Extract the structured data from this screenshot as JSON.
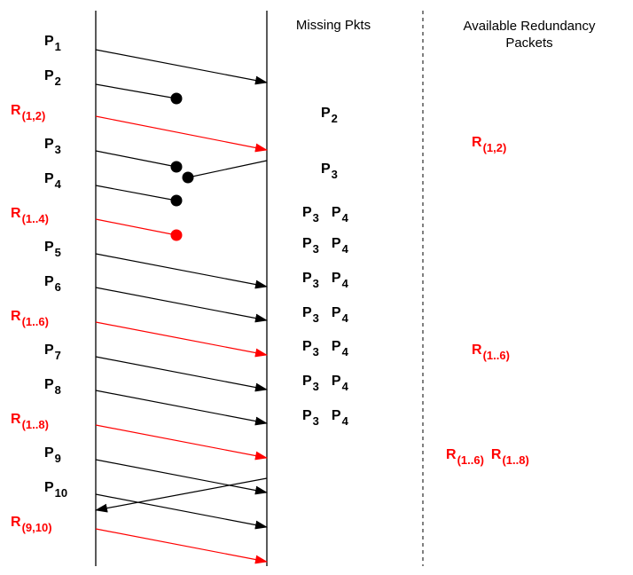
{
  "headers": {
    "missing": "Missing Pkts",
    "available_line1": "Available Redundancy",
    "available_line2": "Packets"
  },
  "colors": {
    "data": "#000000",
    "redundancy": "#ff0000"
  },
  "packets": [
    {
      "base": "P",
      "sub": "1",
      "kind": "data"
    },
    {
      "base": "P",
      "sub": "2",
      "kind": "data"
    },
    {
      "base": "R",
      "sub": "(1,2)",
      "kind": "redundancy"
    },
    {
      "base": "P",
      "sub": "3",
      "kind": "data"
    },
    {
      "base": "P",
      "sub": "4",
      "kind": "data"
    },
    {
      "base": "R",
      "sub": "(1..4)",
      "kind": "redundancy"
    },
    {
      "base": "P",
      "sub": "5",
      "kind": "data"
    },
    {
      "base": "P",
      "sub": "6",
      "kind": "data"
    },
    {
      "base": "R",
      "sub": "(1..6)",
      "kind": "redundancy"
    },
    {
      "base": "P",
      "sub": "7",
      "kind": "data"
    },
    {
      "base": "P",
      "sub": "8",
      "kind": "data"
    },
    {
      "base": "R",
      "sub": "(1..8)",
      "kind": "redundancy"
    },
    {
      "base": "P",
      "sub": "9",
      "kind": "data"
    },
    {
      "base": "P",
      "sub": "10",
      "kind": "data"
    },
    {
      "base": "R",
      "sub": "(9,10)",
      "kind": "redundancy"
    }
  ],
  "missing_rows": [
    [
      {
        "base": "P",
        "sub": "2"
      }
    ],
    [
      {
        "base": "P",
        "sub": "3"
      }
    ],
    [
      {
        "base": "P",
        "sub": "3"
      },
      {
        "base": "P",
        "sub": "4"
      }
    ],
    [
      {
        "base": "P",
        "sub": "3"
      },
      {
        "base": "P",
        "sub": "4"
      }
    ],
    [
      {
        "base": "P",
        "sub": "3"
      },
      {
        "base": "P",
        "sub": "4"
      }
    ],
    [
      {
        "base": "P",
        "sub": "3"
      },
      {
        "base": "P",
        "sub": "4"
      }
    ],
    [
      {
        "base": "P",
        "sub": "3"
      },
      {
        "base": "P",
        "sub": "4"
      }
    ],
    [
      {
        "base": "P",
        "sub": "3"
      },
      {
        "base": "P",
        "sub": "4"
      }
    ],
    [
      {
        "base": "P",
        "sub": "3"
      },
      {
        "base": "P",
        "sub": "4"
      }
    ]
  ],
  "available_rows": [
    [
      {
        "base": "R",
        "sub": "(1,2)"
      }
    ],
    [
      {
        "base": "R",
        "sub": "(1..6)"
      }
    ],
    [
      {
        "base": "R",
        "sub": "(1..6)"
      },
      {
        "base": "R",
        "sub": "(1..8)"
      }
    ]
  ]
}
